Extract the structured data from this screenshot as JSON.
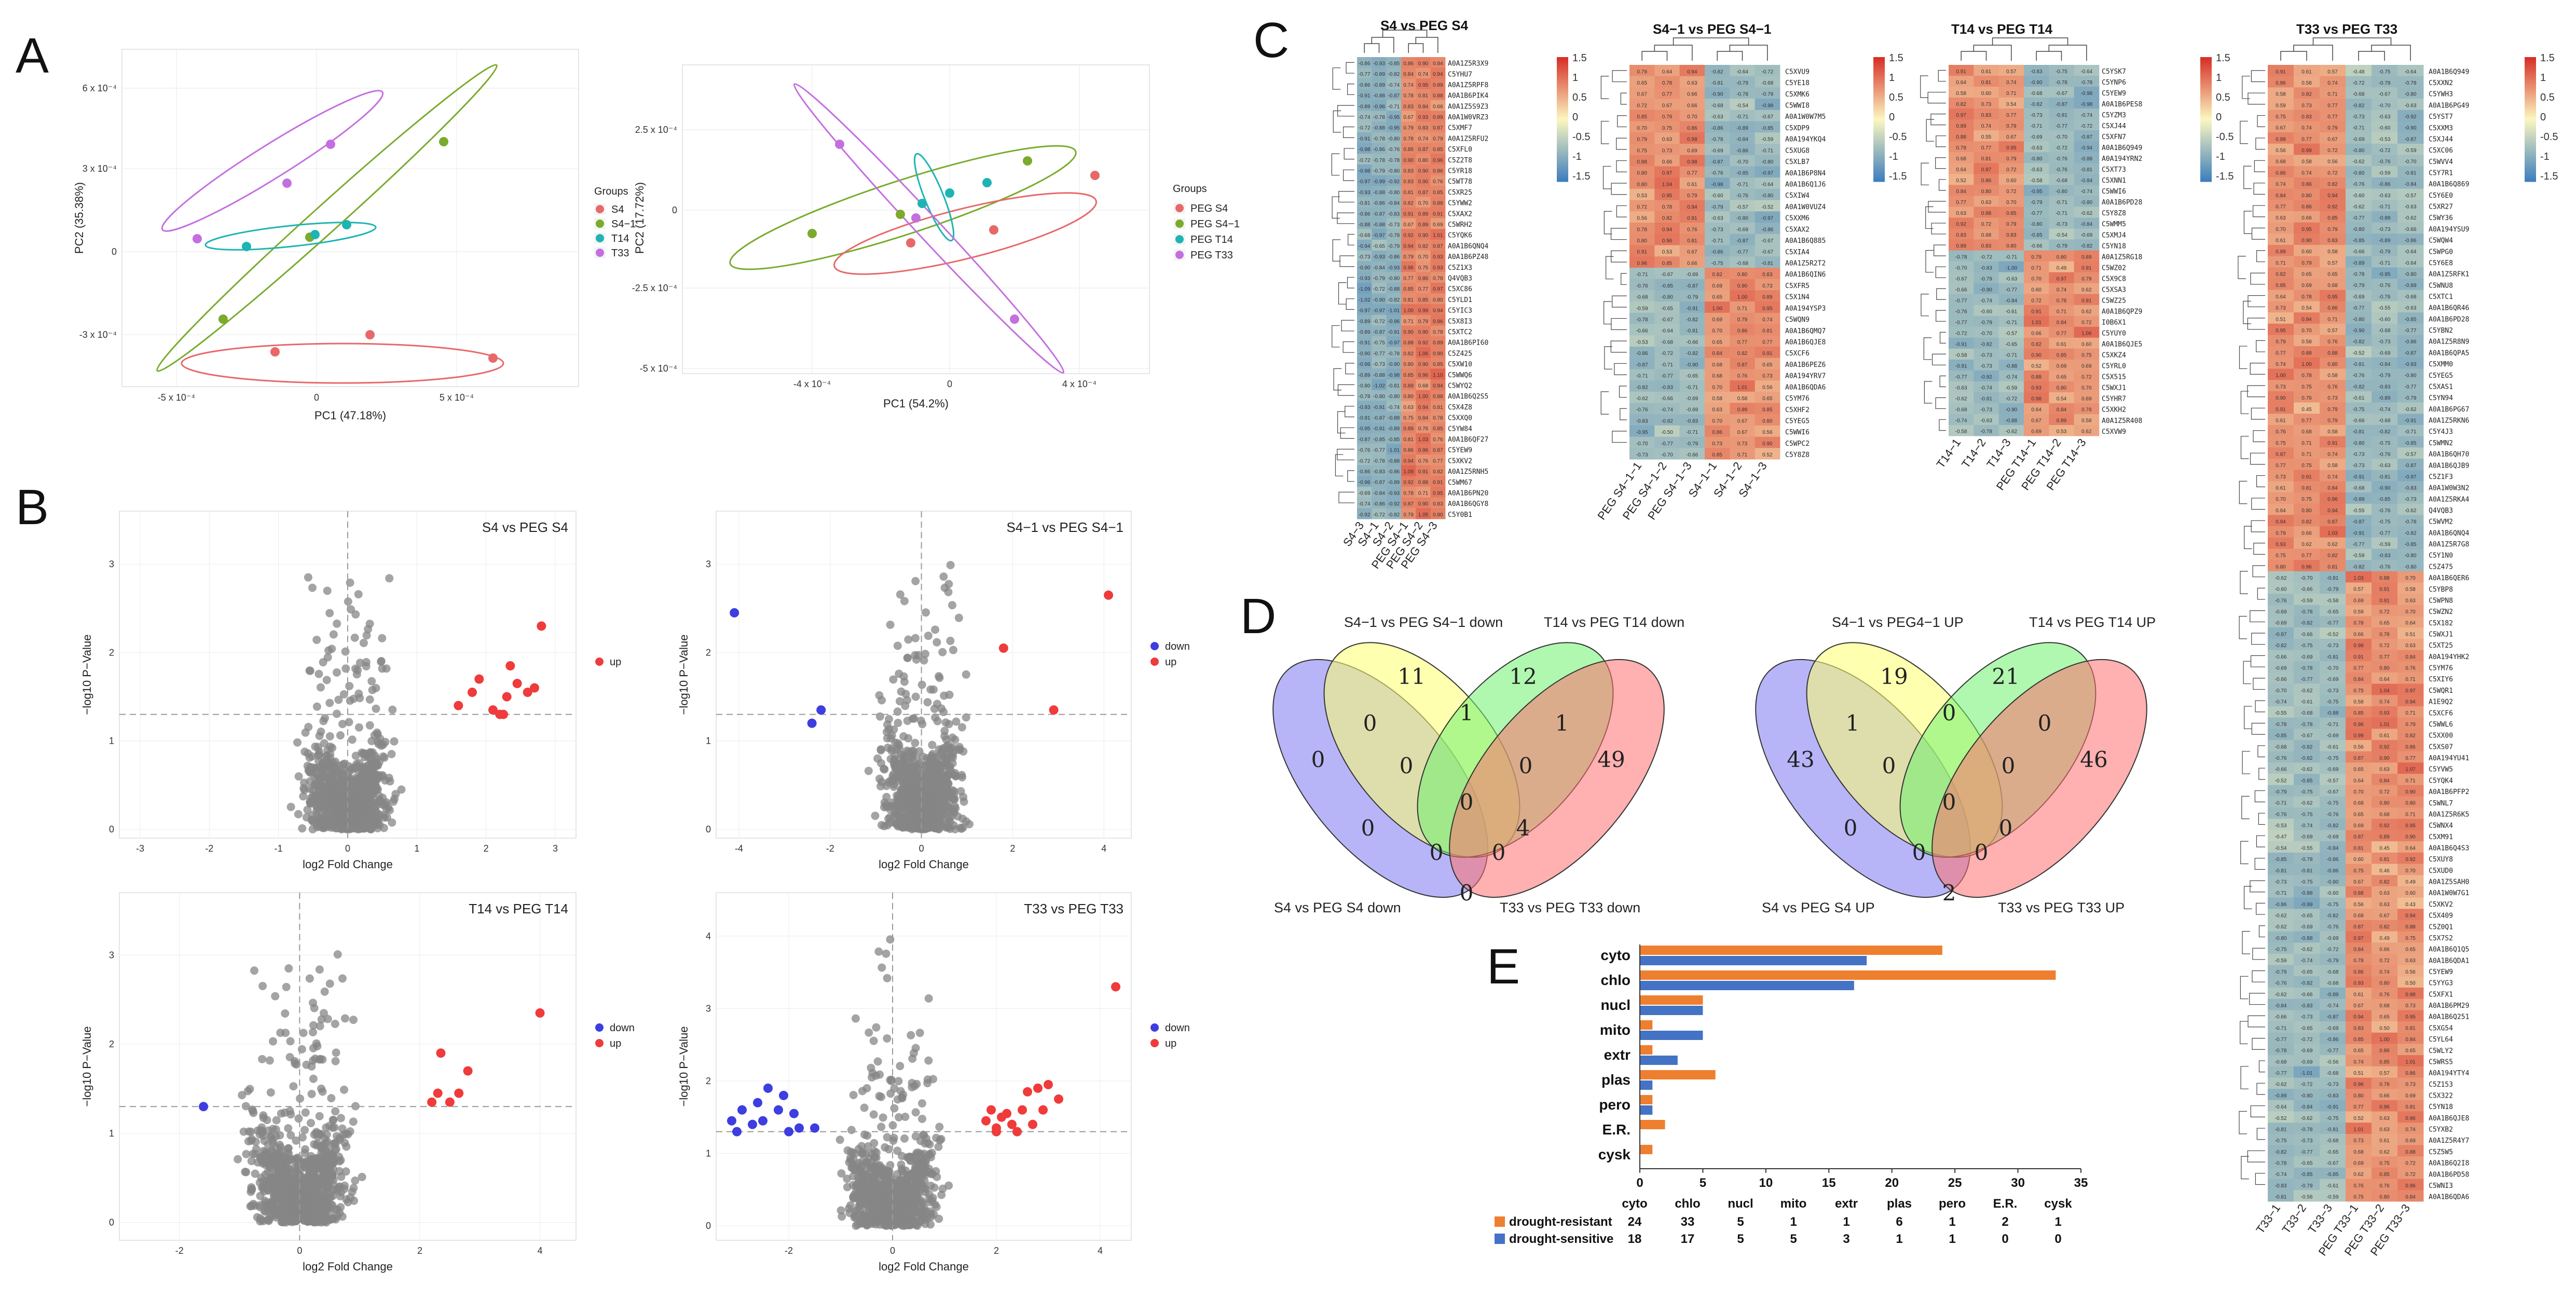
{
  "panels": {
    "A": "A",
    "B": "B",
    "C": "C",
    "D": "D",
    "E": "E"
  },
  "colors": {
    "S4": "#e8686a",
    "S4_1": "#7aab2c",
    "T14": "#1eb4b4",
    "T33": "#c46fe0",
    "up": "#ef3b3b",
    "down": "#3d3de0",
    "grey": "#858585",
    "resistant": "#ee7f2f",
    "sensitive": "#4472c4",
    "hm_low": "#3f7fbd",
    "hm_mid": "#fbf7c0",
    "hm_high": "#d73027"
  },
  "panel_a": {
    "left": {
      "xlabel": "PC1 (47.18%)",
      "ylabel": "PC2 (35.38%)",
      "xticks": [
        "-5 x 10⁻⁴",
        "0",
        "5 x 10⁻⁴"
      ],
      "yticks": [
        "6 x 10⁻⁴",
        "3 x 10⁻⁴",
        "0",
        "-3 x 10⁻⁴"
      ],
      "legend_title": "Groups",
      "legend": [
        "S4",
        "S4−1",
        "T14",
        "T33"
      ]
    },
    "right": {
      "xlabel": "PC1 (54.2%)",
      "ylabel": "PC2 (17.72%)",
      "xticks": [
        "-4 x 10⁻⁴",
        "0",
        "4 x 10⁻⁴"
      ],
      "yticks": [
        "2.5 x 10⁻⁴",
        "0",
        "-2.5 x 10⁻⁴",
        "-5 x 10⁻⁴"
      ],
      "legend_title": "Groups",
      "legend": [
        "PEG S4",
        "PEG S4−1",
        "PEG T14",
        "PEG T33"
      ]
    }
  },
  "panel_b": [
    {
      "title": "S4 vs PEG S4",
      "xlabel": "log2 Fold Change",
      "ylabel": "−log10 P−Value",
      "xticks": [
        "-3",
        "-2",
        "-1",
        "0",
        "1",
        "2",
        "3"
      ],
      "yticks": [
        "0",
        "1",
        "2",
        "3"
      ],
      "legend": [
        "up"
      ]
    },
    {
      "title": "S4−1 vs PEG S4−1",
      "xlabel": "log2 Fold Change",
      "ylabel": "−log10 P−Value",
      "xticks": [
        "-4",
        "-2",
        "0",
        "2",
        "4"
      ],
      "yticks": [
        "0",
        "1",
        "2",
        "3"
      ],
      "legend": [
        "down",
        "up"
      ]
    },
    {
      "title": "T14 vs PEG T14",
      "xlabel": "log2 Fold Change",
      "ylabel": "−log10 P−Value",
      "xticks": [
        "-2",
        "0",
        "2",
        "4"
      ],
      "yticks": [
        "0",
        "1",
        "2",
        "3"
      ],
      "legend": [
        "down",
        "up"
      ]
    },
    {
      "title": "T33 vs PEG T33",
      "xlabel": "log2 Fold Change",
      "ylabel": "−log10 P−Value",
      "xticks": [
        "-2",
        "0",
        "2",
        "4"
      ],
      "yticks": [
        "0",
        "1",
        "2",
        "3",
        "4"
      ],
      "legend": [
        "down",
        "up"
      ]
    }
  ],
  "panel_c": {
    "scale": [
      "1.5",
      "1",
      "0.5",
      "0",
      "-0.5",
      "-1",
      "-1.5"
    ],
    "heatmaps": [
      {
        "title": "S4 vs PEG S4",
        "cols": [
          "S4−3",
          "S4−1",
          "S4−2",
          "PEG S4−1",
          "PEG S4−2",
          "PEG S4−3"
        ],
        "rows": [
          "A0A1Z5R3X9",
          "C5YHU7",
          "A0A1Z5RPF8",
          "A0A1B6PIK4",
          "A0A1Z5S9Z3",
          "A0A1W0VRZ3",
          "C5XMF7",
          "A0A1Z5RFU2",
          "C5XFL0",
          "C5Z2T8",
          "C5YR18",
          "C5WT78",
          "C5XR25",
          "C5YWW2",
          "C5XAX2",
          "C5WRH2",
          "C5YQK6",
          "A0A1B6QNQ4",
          "A0A1B6PZ48",
          "C5Z1X3",
          "Q4VQB3",
          "C5XC86",
          "C5YLD1",
          "C5YIC3",
          "C5X8I3",
          "C5XTC2",
          "A0A1B6PI60",
          "C5Z425",
          "C5XW10",
          "C5WWQ6",
          "C5WYQ2",
          "A0A1B6Q2S5",
          "C5X4Z8",
          "C5XXQ0",
          "C5YW84",
          "A0A1B6QF27",
          "C5YEW9",
          "C5XKV2",
          "A0A1Z5RNH5",
          "C5WM67",
          "A0A1B6PN20",
          "A0A1B6QGY8",
          "C5Y0B1"
        ]
      },
      {
        "title": "S4−1 vs PEG S4−1",
        "cols": [
          "PEG S4−1−1",
          "PEG S4−1−2",
          "PEG S4−1−3",
          "S4−1−1",
          "S4−1−2",
          "S4−1−3"
        ],
        "rows": [
          "C5XVU9",
          "C5YE18",
          "C5XMK6",
          "C5WWI8",
          "A0A1W0W7M5",
          "C5XDP9",
          "A0A194YKQ4",
          "C5XUG8",
          "C5XLB7",
          "A0A1B6P8N4",
          "A0A1B6Q1J6",
          "C5XIW4",
          "A0A1W0VUZ4",
          "C5XXM6",
          "C5XAX2",
          "A0A1B6Q885",
          "C5XIA4",
          "A0A1Z5R2T2",
          "A0A1B6QIN6",
          "C5XFR5",
          "C5X1N4",
          "A0A194YSP3",
          "C5WQN9",
          "A0A1B6QMQ7",
          "A0A1B6QJE8",
          "C5XCF6",
          "A0A1B6PEZ6",
          "A0A194YRV7",
          "A0A1B6QDA6",
          "C5YM76",
          "C5XHF2",
          "C5YEG5",
          "C5WWI6",
          "C5WPC2",
          "C5Y8Z8"
        ]
      },
      {
        "title": "T14 vs PEG T14",
        "cols": [
          "T14−1",
          "T14−2",
          "T14−3",
          "PEG T14−1",
          "PEG T14−2",
          "PEG T14−3"
        ],
        "rows": [
          "C5YSK7",
          "C5YNP6",
          "C5YEW9",
          "A0A1B6PES8",
          "C5YZM3",
          "C5XJ44",
          "C5XFN7",
          "A0A1B6Q949",
          "A0A194YRN2",
          "C5XT73",
          "C5XNN1",
          "C5WWI6",
          "A0A1B6PD28",
          "C5Y8Z8",
          "C5WMM5",
          "C5XMJ4",
          "C5YN18",
          "A0A1Z5RG18",
          "C5WZ02",
          "C5X9C8",
          "C5XSA3",
          "C5WZ25",
          "A0A1B6QPZ9",
          "I0B6X1",
          "C5YUY0",
          "A0A1B6QJE5",
          "C5XKZ4",
          "C5YRL0",
          "C5X515",
          "C5WXJ1",
          "C5YHR7",
          "C5XKH2",
          "A0A1Z5R408",
          "C5XVW9"
        ]
      },
      {
        "title": "T33 vs PEG T33",
        "cols": [
          "T33−1",
          "T33−2",
          "T33−3",
          "PEG T33−1",
          "PEG T33−2",
          "PEG T33−3"
        ],
        "rows": [
          "A0A1B6Q949",
          "C5XXN2",
          "C5YWH3",
          "A0A1B6PG49",
          "C5YST7",
          "C5XXM3",
          "C5XJ44",
          "C5XC06",
          "C5WVV4",
          "C5Y7R1",
          "A0A1B6Q869",
          "C5Y6E0",
          "C5XR27",
          "C5WY36",
          "A0A194YSU9",
          "C5WQW4",
          "C5WPG0",
          "C5Y6E8",
          "A0A1Z5RFK1",
          "C5WNU8",
          "C5XTC1",
          "A0A1B6QR46",
          "A0A1B6PD28",
          "C5YBN2",
          "A0A1Z5R8N9",
          "A0A1B6QPA5",
          "C5XMM0",
          "C5YEG5",
          "C5XAS1",
          "C5YN94",
          "A0A1B6PG67",
          "A0A1Z5RKN6",
          "C5Y4J3",
          "C5WMN2",
          "A0A1B6QH70",
          "A0A1B6QJB9",
          "C5Z1F3",
          "A0A1W0W3N2",
          "A0A1Z5RKA4",
          "Q4VQB3",
          "C5WVM2",
          "A0A1B6QNQ4",
          "A0A1Z5R7G8",
          "C5Y1N0",
          "C5Z475",
          "A0A1B6QER6",
          "C5YBP8",
          "C5WPN8",
          "C5WZN2",
          "C5X182",
          "C5WXJ1",
          "C5XT25",
          "A0A194YHK2",
          "C5YM76",
          "C5XIY6",
          "C5WQR1",
          "A1E9Q2",
          "C5XCF6",
          "C5WWL6",
          "C5XX00",
          "C5XS07",
          "A0A194YU41",
          "C5YVW5",
          "C5YQK4",
          "A0A1B6PFP2",
          "C5WNL7",
          "A0A1Z5R6K5",
          "C5WNX4",
          "C5XM91",
          "A0A1B6Q4S3",
          "C5XUY8",
          "C5XUD0",
          "A0A1Z5SAH0",
          "A0A1W0W7G1",
          "C5XKV2",
          "C5X409",
          "C5Z0Q1",
          "C5X7S2",
          "A0A1B6Q1Q5",
          "A0A1B6QDA1",
          "C5YEW9",
          "C5YYG3",
          "C5XFX1",
          "A0A1B6PM29",
          "A0A1B6Q251",
          "C5XG54",
          "C5YL64",
          "C5WLY2",
          "C5WRS5",
          "A0A194YTY4",
          "C5Z153",
          "C5X322",
          "C5YN18",
          "A0A1B6QJE8",
          "C5YXB2",
          "A0A1Z5R4Y7",
          "C5Z5W5",
          "A0A1B6Q2I8",
          "A0A1B6PD58",
          "C5WNI3",
          "A0A1B6QDA6"
        ]
      }
    ]
  },
  "panel_d": {
    "left": {
      "labels": [
        "S4−1 vs PEG S4−1 down",
        "T14 vs PEG T14 down",
        "S4 vs PEG S4 down",
        "T33 vs PEG T33 down"
      ],
      "counts": {
        "a": "0",
        "b": "11",
        "c": "12",
        "d": "49",
        "ab": "0",
        "bc": "1",
        "cd": "1",
        "ad": "0",
        "abc": "0",
        "bcd": "0",
        "acd": "0",
        "abd": "0",
        "abcd": "0",
        "ac": "0",
        "bd": "0",
        "x1": "4",
        "x2": "0"
      }
    },
    "right": {
      "labels": [
        "S4−1 vs PEG4−1 UP",
        "T14 vs PEG T14 UP",
        "S4 vs PEG S4 UP",
        "T33 vs PEG T33 UP"
      ],
      "counts": {
        "a": "43",
        "b": "19",
        "c": "21",
        "d": "46",
        "ab": "1",
        "bc": "0",
        "cd": "0",
        "ad": "2",
        "abc": "0",
        "bcd": "0",
        "acd": "0",
        "abd": "0",
        "abcd": "0",
        "ac": "0",
        "bd": "0",
        "x1": "0",
        "x2": "0"
      }
    }
  },
  "chart_data": {
    "type": "bar",
    "orientation": "horizontal",
    "categories": [
      "cyto",
      "chlo",
      "nucl",
      "mito",
      "extr",
      "plas",
      "pero",
      "E.R.",
      "cysk"
    ],
    "series": [
      {
        "name": "drought-resistant",
        "values": [
          24,
          33,
          5,
          1,
          1,
          6,
          1,
          2,
          1
        ]
      },
      {
        "name": "drought-sensitive",
        "values": [
          18,
          17,
          5,
          5,
          3,
          1,
          1,
          0,
          0
        ]
      }
    ],
    "xlim": [
      0,
      35
    ],
    "xticks": [
      "0",
      "5",
      "10",
      "15",
      "20",
      "25",
      "30",
      "35"
    ],
    "table_values": {
      "drought-resistant": [
        "24",
        "33",
        "5",
        "1",
        "1",
        "6",
        "1",
        "2",
        "1"
      ],
      "drought-sensitive": [
        "18",
        "17",
        "5",
        "5",
        "3",
        "1",
        "1",
        "0",
        "0"
      ]
    }
  }
}
